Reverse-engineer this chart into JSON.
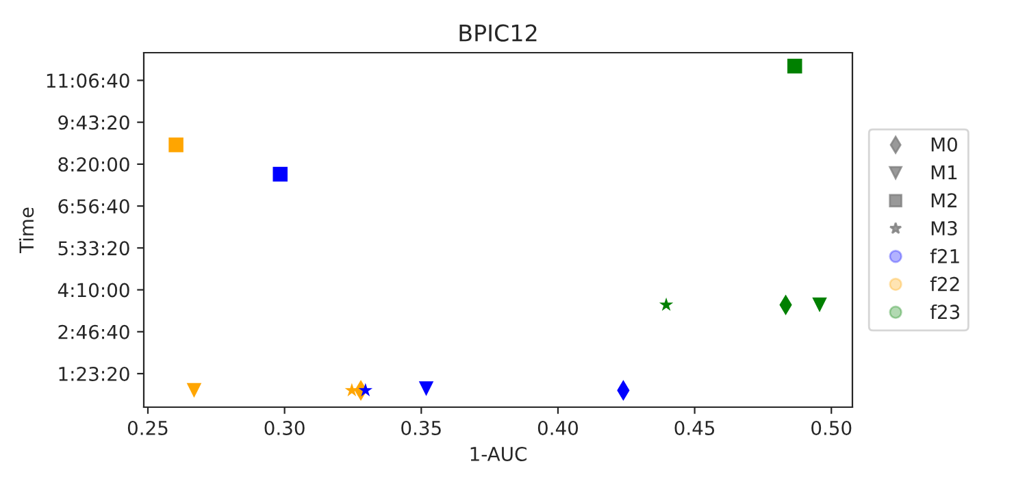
{
  "chart_data": {
    "type": "scatter",
    "title": "BPIC12",
    "xlabel": "1-AUC",
    "ylabel": "Time",
    "xlim": [
      0.2485,
      0.5077
    ],
    "xticks": [
      {
        "value": 0.25,
        "label": "0.25"
      },
      {
        "value": 0.3,
        "label": "0.30"
      },
      {
        "value": 0.35,
        "label": "0.35"
      },
      {
        "value": 0.4,
        "label": "0.40"
      },
      {
        "value": 0.45,
        "label": "0.45"
      },
      {
        "value": 0.5,
        "label": "0.50"
      }
    ],
    "ylim": [
      1000,
      43300
    ],
    "yticks": [
      {
        "value": 5000,
        "label": "1:23:20"
      },
      {
        "value": 10000,
        "label": "2:46:40"
      },
      {
        "value": 15000,
        "label": "4:10:00"
      },
      {
        "value": 20000,
        "label": "5:33:20"
      },
      {
        "value": 25000,
        "label": "6:56:40"
      },
      {
        "value": 30000,
        "label": "8:20:00"
      },
      {
        "value": 35000,
        "label": "9:43:20"
      },
      {
        "value": 40000,
        "label": "11:06:40"
      }
    ],
    "grid": false,
    "annotations": [
      "M0",
      "M1",
      "M2",
      "M3",
      "f21",
      "f22",
      "f23"
    ],
    "series": [
      {
        "color": "#0000ff",
        "marker": "diamond",
        "x": [
          0.4239
        ],
        "values": [
          3000
        ]
      },
      {
        "color": "#0000ff",
        "marker": "triangle",
        "x": [
          0.3518
        ],
        "values": [
          3200
        ]
      },
      {
        "color": "#0000ff",
        "marker": "square",
        "x": [
          0.2984
        ],
        "values": [
          28800
        ]
      },
      {
        "color": "#0000ff",
        "marker": "star",
        "x": [
          0.3296
        ],
        "values": [
          3000
        ]
      },
      {
        "color": "#ffa500",
        "marker": "diamond",
        "x": [
          0.3279
        ],
        "values": [
          3000
        ]
      },
      {
        "color": "#ffa500",
        "marker": "triangle",
        "x": [
          0.2669
        ],
        "values": [
          3000
        ]
      },
      {
        "color": "#ffa500",
        "marker": "square",
        "x": [
          0.2603
        ],
        "values": [
          32300
        ]
      },
      {
        "color": "#ffa500",
        "marker": "star",
        "x": [
          0.3246
        ],
        "values": [
          3000
        ]
      },
      {
        "color": "#008000",
        "marker": "diamond",
        "x": [
          0.4833
        ],
        "values": [
          13200
        ]
      },
      {
        "color": "#008000",
        "marker": "triangle",
        "x": [
          0.4957
        ],
        "values": [
          13200
        ]
      },
      {
        "color": "#008000",
        "marker": "square",
        "x": [
          0.4866
        ],
        "values": [
          41700
        ]
      },
      {
        "color": "#008000",
        "marker": "star",
        "x": [
          0.4396
        ],
        "values": [
          13200
        ]
      }
    ]
  }
}
